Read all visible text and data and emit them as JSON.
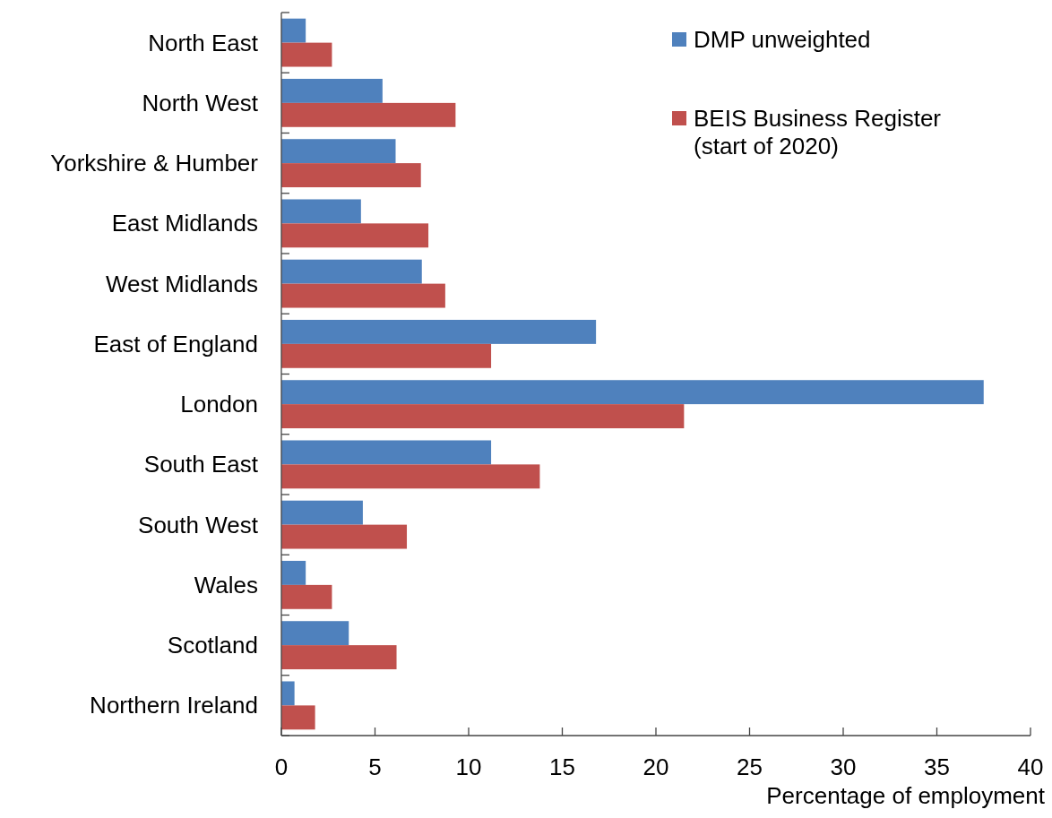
{
  "chart_data": {
    "type": "bar",
    "orientation": "horizontal",
    "xlabel": "Percentage of employment",
    "categories": [
      "North East",
      "North West",
      "Yorkshire & Humber",
      "East Midlands",
      "West Midlands",
      "East of England",
      "London",
      "South East",
      "South West",
      "Wales",
      "Scotland",
      "Northern Ireland"
    ],
    "series": [
      {
        "name": "DMP unweighted",
        "color": "#4f81bd",
        "values": [
          1.3,
          5.4,
          6.1,
          4.25,
          7.5,
          16.8,
          37.5,
          11.2,
          4.35,
          1.3,
          3.6,
          0.7
        ]
      },
      {
        "name": "BEIS Business Register (start of 2020)",
        "color": "#c0504d",
        "values": [
          2.7,
          9.3,
          7.45,
          7.85,
          8.75,
          11.2,
          21.5,
          13.8,
          6.7,
          2.7,
          6.15,
          1.8
        ]
      }
    ],
    "xlim": [
      0,
      40
    ],
    "xticks": [
      0,
      5,
      10,
      15,
      20,
      25,
      30,
      35,
      40
    ],
    "grid": false,
    "legend": "top right"
  }
}
